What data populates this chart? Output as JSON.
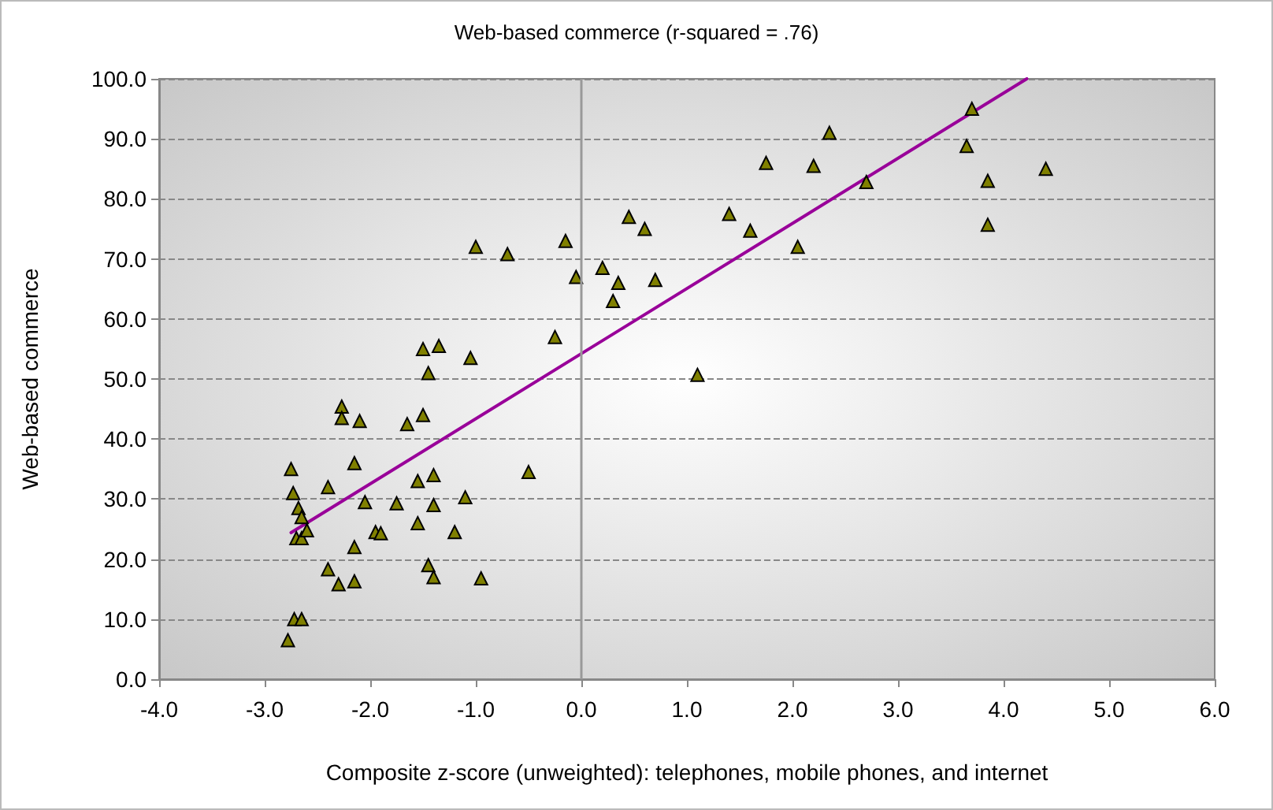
{
  "chart_data": {
    "type": "scatter",
    "title": "Web-based commerce (r-squared = .76)",
    "xlabel": "Composite z-score (unweighted): telephones, mobile phones, and internet",
    "ylabel": "Web-based commerce",
    "xlim": [
      -4,
      6
    ],
    "ylim": [
      0,
      100
    ],
    "xticks": [
      {
        "value": -4,
        "label": "-4.0"
      },
      {
        "value": -3,
        "label": "-3.0"
      },
      {
        "value": -2,
        "label": "-2.0"
      },
      {
        "value": -1,
        "label": "-1.0"
      },
      {
        "value": 0,
        "label": "0.0"
      },
      {
        "value": 1,
        "label": "1.0"
      },
      {
        "value": 2,
        "label": "2.0"
      },
      {
        "value": 3,
        "label": "3.0"
      },
      {
        "value": 4,
        "label": "4.0"
      },
      {
        "value": 5,
        "label": "5.0"
      },
      {
        "value": 6,
        "label": "6.0"
      }
    ],
    "yticks": [
      {
        "value": 0,
        "label": "0.0"
      },
      {
        "value": 10,
        "label": "10.0"
      },
      {
        "value": 20,
        "label": "20.0"
      },
      {
        "value": 30,
        "label": "30.0"
      },
      {
        "value": 40,
        "label": "40.0"
      },
      {
        "value": 50,
        "label": "50.0"
      },
      {
        "value": 60,
        "label": "60.0"
      },
      {
        "value": 70,
        "label": "70.0"
      },
      {
        "value": 80,
        "label": "80.0"
      },
      {
        "value": 90,
        "label": "90.0"
      },
      {
        "value": 100,
        "label": "100.0"
      }
    ],
    "grid": "y",
    "ref_lines": [
      {
        "axis": "x",
        "value": 0,
        "color": "#999999"
      }
    ],
    "series": [
      {
        "color": "#808000",
        "marker": "triangle",
        "x": [
          -2.75,
          -2.73,
          -2.68,
          -2.65,
          -2.7,
          -2.65,
          -2.6,
          -2.72,
          -2.65,
          -2.78,
          -2.27,
          -2.27,
          -2.1,
          -2.15,
          -2.4,
          -2.05,
          -1.95,
          -1.9,
          -2.15,
          -2.4,
          -2.3,
          -2.15,
          -1.75,
          -1.65,
          -1.5,
          -1.5,
          -1.45,
          -1.35,
          -1.55,
          -1.4,
          -1.4,
          -1.55,
          -1.45,
          -1.4,
          -1.2,
          -1.1,
          -1.05,
          -1.0,
          -0.95,
          -0.7,
          -0.5,
          -0.25,
          -0.15,
          -0.05,
          0.2,
          0.3,
          0.35,
          0.45,
          0.6,
          0.7,
          1.1,
          1.4,
          1.6,
          1.75,
          2.05,
          2.2,
          2.35,
          2.7,
          3.65,
          3.7,
          3.85,
          3.85,
          4.4
        ],
        "values": [
          35,
          31,
          28.5,
          27,
          23.5,
          23.5,
          24.8,
          10,
          10,
          6.5,
          45.4,
          43.5,
          43,
          36,
          32,
          29.5,
          24.5,
          24.3,
          22,
          18.3,
          15.8,
          16.3,
          29.3,
          42.5,
          44,
          55,
          51,
          55.5,
          33,
          34,
          29,
          26,
          19,
          17,
          24.5,
          30.3,
          53.5,
          72,
          16.8,
          70.8,
          34.5,
          57,
          73,
          67,
          68.5,
          63,
          66,
          77,
          75,
          66.5,
          50.7,
          77.5,
          74.7,
          86,
          72,
          85.5,
          91,
          82.8,
          88.8,
          95,
          83,
          75.7,
          85
        ]
      },
      {
        "type": "line",
        "color": "#990099",
        "marker": "none",
        "line_style": "solid",
        "x": [
          -2.75,
          4.22
        ],
        "values": [
          24.4,
          100
        ]
      }
    ]
  }
}
